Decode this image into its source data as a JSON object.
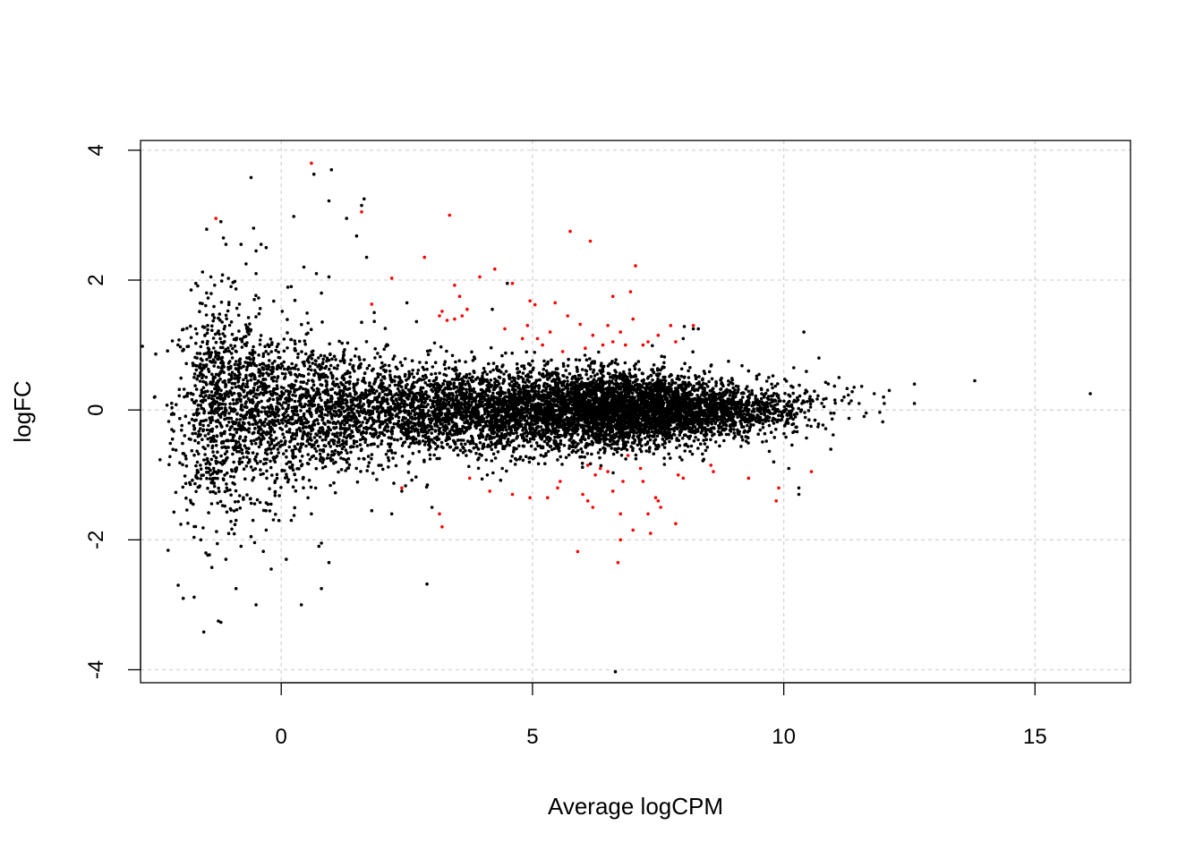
{
  "chart_data": {
    "type": "scatter",
    "title": "",
    "xlabel": "Average logCPM",
    "ylabel": "logFC",
    "xlim": [
      -2.8,
      16.9
    ],
    "ylim": [
      -4.2,
      4.15
    ],
    "x_ticks": [
      0,
      5,
      10,
      15
    ],
    "y_ticks": [
      -4,
      -2,
      0,
      2,
      4
    ],
    "x_tick_labels": [
      "0",
      "5",
      "10",
      "15"
    ],
    "y_tick_labels": [
      "-4",
      "-2",
      "0",
      "2",
      "4"
    ],
    "grid": true,
    "colors": {
      "not_significant": "#000000",
      "significant": "#ff0000",
      "grid": "#d3d3d3"
    },
    "series": [
      {
        "significant": false,
        "points": [
          [
            -0.6,
            3.58
          ],
          [
            -0.55,
            2.8
          ],
          [
            -1.2,
            2.9
          ],
          [
            -1.1,
            2.55
          ],
          [
            -1.15,
            2.65
          ],
          [
            -0.8,
            2.55
          ],
          [
            -0.5,
            2.45
          ],
          [
            -0.4,
            2.55
          ],
          [
            -0.3,
            2.5
          ],
          [
            0.25,
            2.98
          ],
          [
            0.45,
            2.2
          ],
          [
            0.65,
            3.63
          ],
          [
            0.7,
            2.1
          ],
          [
            1.0,
            3.7
          ],
          [
            0.95,
            3.22
          ],
          [
            0.95,
            2.05
          ],
          [
            1.3,
            2.95
          ],
          [
            1.5,
            2.68
          ],
          [
            1.6,
            3.15
          ],
          [
            1.65,
            3.25
          ],
          [
            1.7,
            2.35
          ],
          [
            0.4,
            -3.0
          ],
          [
            0.8,
            -2.75
          ],
          [
            0.95,
            -2.35
          ],
          [
            0.75,
            -2.1
          ],
          [
            0.8,
            -2.05
          ],
          [
            -2.05,
            -2.7
          ],
          [
            -1.95,
            -2.9
          ],
          [
            -1.25,
            -3.25
          ],
          [
            -1.2,
            -3.27
          ],
          [
            -0.5,
            -3.0
          ],
          [
            -0.2,
            -2.45
          ],
          [
            0.1,
            -2.3
          ],
          [
            -0.9,
            -2.75
          ],
          [
            6.65,
            -4.03
          ],
          [
            2.9,
            -2.68
          ],
          [
            3.0,
            -1.5
          ],
          [
            12.6,
            0.4
          ],
          [
            12.6,
            0.1
          ],
          [
            13.8,
            0.45
          ],
          [
            16.1,
            0.25
          ],
          [
            12.1,
            0.3
          ],
          [
            12.0,
            0.1
          ],
          [
            11.8,
            0.25
          ],
          [
            11.6,
            -0.1
          ],
          [
            11.5,
            0.1
          ],
          [
            11.4,
            0.35
          ],
          [
            11.3,
            0.1
          ],
          [
            11.2,
            0.2
          ],
          [
            11.0,
            -0.05
          ],
          [
            11.1,
            0.5
          ],
          [
            10.4,
            1.2
          ],
          [
            10.7,
            0.8
          ],
          [
            10.2,
            0.65
          ],
          [
            10.3,
            -1.2
          ],
          [
            10.3,
            -1.3
          ],
          [
            10.1,
            -0.9
          ],
          [
            9.8,
            -0.8
          ],
          [
            8.2,
            1.25
          ],
          [
            8.3,
            1.25
          ],
          [
            8.0,
            1.1
          ],
          [
            8.9,
            0.75
          ],
          [
            9.3,
            0.6
          ],
          [
            9.7,
            0.5
          ],
          [
            2.2,
            -1.6
          ],
          [
            1.8,
            -1.55
          ],
          [
            2.4,
            -1.25
          ],
          [
            4.1,
            -1.0
          ],
          [
            4.4,
            -0.9
          ],
          [
            2.5,
            1.65
          ],
          [
            1.85,
            1.5
          ],
          [
            1.6,
            1.35
          ],
          [
            -0.6,
            -1.95
          ],
          [
            -0.9,
            -1.7
          ],
          [
            -1.6,
            -2.0
          ],
          [
            -1.5,
            -2.2
          ],
          [
            -1.1,
            -2.3
          ],
          [
            -0.8,
            -2.1
          ],
          [
            -0.3,
            -1.85
          ],
          [
            0.2,
            -1.7
          ],
          [
            0.6,
            -1.6
          ],
          [
            -1.7,
            1.95
          ],
          [
            -1.4,
            2.05
          ],
          [
            -1.0,
            1.9
          ],
          [
            -0.7,
            2.25
          ],
          [
            -0.5,
            2.1
          ],
          [
            0.2,
            1.9
          ],
          [
            0.8,
            1.8
          ],
          [
            4.5,
            1.95
          ],
          [
            4.2,
            1.55
          ]
        ],
        "clouds": [
          {
            "cx": -1.3,
            "cy": 0.0,
            "sx": 0.42,
            "sy": 0.85,
            "n": 700
          },
          {
            "cx": -0.3,
            "cy": 0.0,
            "sx": 0.5,
            "sy": 0.65,
            "n": 700
          },
          {
            "cx": 0.9,
            "cy": 0.0,
            "sx": 0.6,
            "sy": 0.5,
            "n": 700
          },
          {
            "cx": 2.4,
            "cy": 0.0,
            "sx": 0.8,
            "sy": 0.38,
            "n": 900
          },
          {
            "cx": 4.3,
            "cy": 0.0,
            "sx": 0.9,
            "sy": 0.32,
            "n": 1500
          },
          {
            "cx": 6.3,
            "cy": 0.0,
            "sx": 0.9,
            "sy": 0.3,
            "n": 2400
          },
          {
            "cx": 7.9,
            "cy": 0.0,
            "sx": 0.8,
            "sy": 0.25,
            "n": 1500
          },
          {
            "cx": 9.4,
            "cy": 0.0,
            "sx": 0.6,
            "sy": 0.2,
            "n": 350
          },
          {
            "cx": 10.7,
            "cy": 0.1,
            "sx": 0.5,
            "sy": 0.2,
            "n": 50
          }
        ]
      },
      {
        "significant": true,
        "points": [
          [
            -1.3,
            2.95
          ],
          [
            0.6,
            3.8
          ],
          [
            1.6,
            3.05
          ],
          [
            3.35,
            3.0
          ],
          [
            5.75,
            2.75
          ],
          [
            6.15,
            2.6
          ],
          [
            2.85,
            2.35
          ],
          [
            7.05,
            2.22
          ],
          [
            2.2,
            2.03
          ],
          [
            4.25,
            2.17
          ],
          [
            3.95,
            2.05
          ],
          [
            4.6,
            1.95
          ],
          [
            3.45,
            1.92
          ],
          [
            6.95,
            1.82
          ],
          [
            6.6,
            1.75
          ],
          [
            1.8,
            1.63
          ],
          [
            4.95,
            1.68
          ],
          [
            5.05,
            1.62
          ],
          [
            5.45,
            1.65
          ],
          [
            3.55,
            1.75
          ],
          [
            3.15,
            1.45
          ],
          [
            3.2,
            1.52
          ],
          [
            3.7,
            1.55
          ],
          [
            3.3,
            1.38
          ],
          [
            3.45,
            1.4
          ],
          [
            3.6,
            1.45
          ],
          [
            4.9,
            1.3
          ],
          [
            5.1,
            1.1
          ],
          [
            5.35,
            1.2
          ],
          [
            5.7,
            1.45
          ],
          [
            5.95,
            1.32
          ],
          [
            6.2,
            1.15
          ],
          [
            6.5,
            1.3
          ],
          [
            6.75,
            1.2
          ],
          [
            7.0,
            1.4
          ],
          [
            7.5,
            1.15
          ],
          [
            7.75,
            1.3
          ],
          [
            8.2,
            1.3
          ],
          [
            7.2,
            1.0
          ],
          [
            6.85,
            1.0
          ],
          [
            6.4,
            1.0
          ],
          [
            7.85,
            1.05
          ],
          [
            4.45,
            1.25
          ],
          [
            4.8,
            1.1
          ],
          [
            5.6,
            0.9
          ],
          [
            6.05,
            0.95
          ],
          [
            6.6,
            1.05
          ],
          [
            7.3,
            1.05
          ],
          [
            5.2,
            1.0
          ],
          [
            3.75,
            -1.05
          ],
          [
            3.15,
            -1.6
          ],
          [
            3.2,
            -1.8
          ],
          [
            4.15,
            -1.25
          ],
          [
            4.6,
            -1.3
          ],
          [
            4.95,
            -1.35
          ],
          [
            5.3,
            -1.35
          ],
          [
            5.5,
            -1.2
          ],
          [
            5.55,
            -1.1
          ],
          [
            6.0,
            -1.3
          ],
          [
            6.1,
            -1.4
          ],
          [
            6.2,
            -1.5
          ],
          [
            6.25,
            -1.0
          ],
          [
            6.35,
            -0.9
          ],
          [
            6.5,
            -0.95
          ],
          [
            6.6,
            -1.25
          ],
          [
            6.75,
            -1.6
          ],
          [
            6.75,
            -2.0
          ],
          [
            6.7,
            -2.35
          ],
          [
            5.9,
            -2.18
          ],
          [
            7.0,
            -1.85
          ],
          [
            7.3,
            -1.6
          ],
          [
            7.45,
            -1.35
          ],
          [
            7.5,
            -1.4
          ],
          [
            7.55,
            -1.5
          ],
          [
            7.35,
            -1.9
          ],
          [
            7.85,
            -1.75
          ],
          [
            7.9,
            -1.0
          ],
          [
            8.0,
            -1.05
          ],
          [
            8.55,
            -0.85
          ],
          [
            8.6,
            -0.95
          ],
          [
            9.3,
            -1.05
          ],
          [
            9.9,
            -1.2
          ],
          [
            9.85,
            -1.4
          ],
          [
            10.55,
            -0.95
          ],
          [
            6.9,
            -0.7
          ],
          [
            6.1,
            -0.85
          ],
          [
            6.8,
            -1.1
          ],
          [
            7.15,
            -0.9
          ],
          [
            7.2,
            -1.1
          ],
          [
            2.4,
            -1.2
          ]
        ]
      }
    ]
  }
}
